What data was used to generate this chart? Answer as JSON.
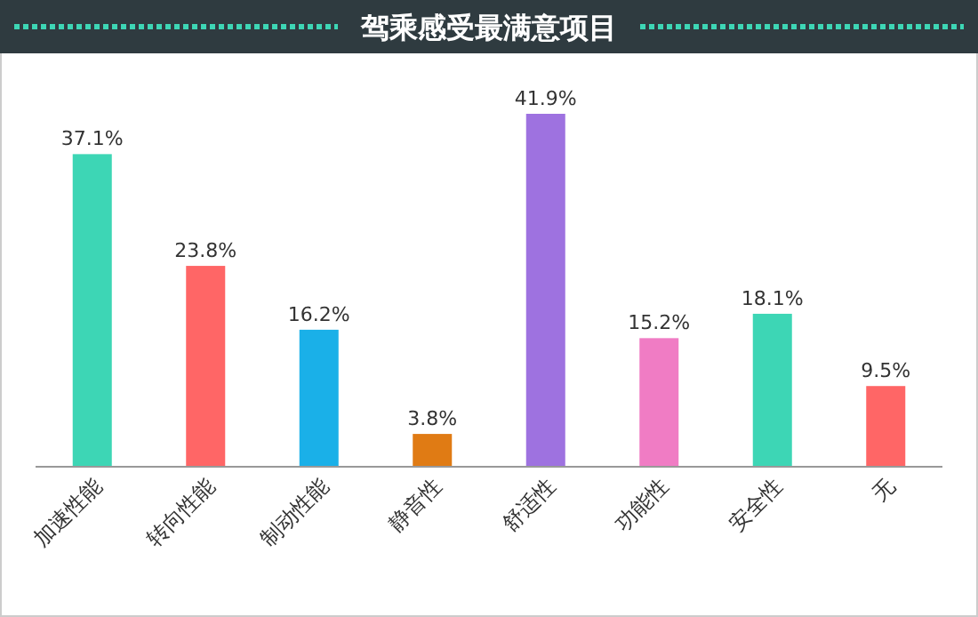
{
  "chart_data": {
    "type": "bar",
    "title": "驾乘感受最满意项目",
    "categories": [
      "加速性能",
      "转向性能",
      "制动性能",
      "静音性",
      "舒适性",
      "功能性",
      "安全性",
      "无"
    ],
    "values": [
      37.1,
      23.8,
      16.2,
      3.8,
      41.9,
      15.2,
      18.1,
      9.5
    ],
    "colors": [
      "#3dd6b5",
      "#ff6666",
      "#1ab0e8",
      "#e07b14",
      "#9e72e0",
      "#f07cc4",
      "#3dd6b5",
      "#ff6666"
    ],
    "value_labels": [
      "37.1%",
      "23.8%",
      "16.2%",
      "3.8%",
      "41.9%",
      "15.2%",
      "18.1%",
      "9.5%"
    ]
  }
}
